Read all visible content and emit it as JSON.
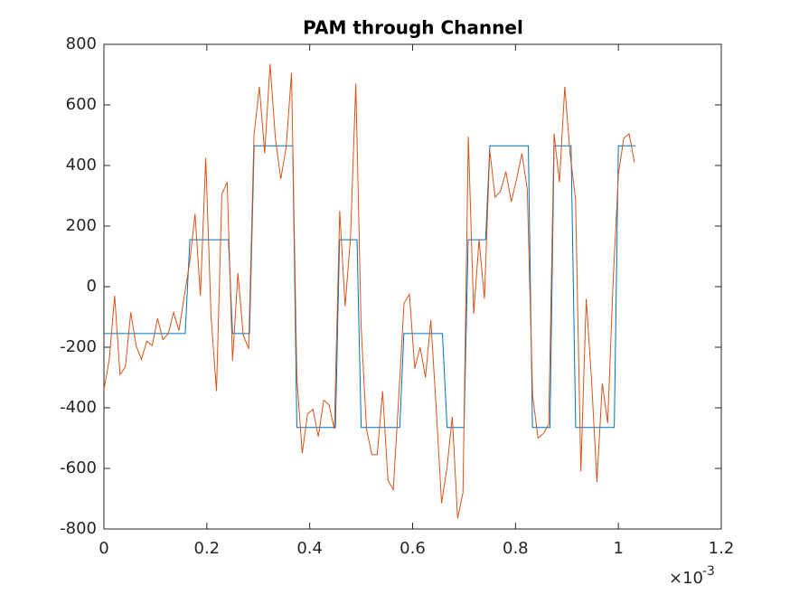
{
  "chart_data": {
    "type": "line",
    "title": "PAM through Channel",
    "x_multiplier": "×10",
    "x_multiplier_exponent": "-3",
    "xlim": [
      0,
      1.2
    ],
    "xticks": [
      0,
      0.2,
      0.4,
      0.6,
      0.8,
      1,
      1.2
    ],
    "ylim": [
      -800,
      800
    ],
    "yticks": [
      -800,
      -600,
      -400,
      -200,
      0,
      200,
      400,
      600,
      800
    ],
    "grid": false,
    "series": [
      {
        "color": "#0072BD",
        "x": [
          0,
          0.158,
          0.167,
          0.242,
          0.25,
          0.283,
          0.292,
          0.367,
          0.375,
          0.45,
          0.458,
          0.492,
          0.5,
          0.575,
          0.583,
          0.658,
          0.667,
          0.7,
          0.708,
          0.742,
          0.75,
          0.825,
          0.833,
          0.867,
          0.875,
          0.908,
          0.917,
          0.992,
          1.0,
          1.033
        ],
        "values": [
          -155,
          -155,
          155,
          155,
          -155,
          -155,
          465,
          465,
          -465,
          -465,
          155,
          155,
          -465,
          -465,
          -155,
          -155,
          -465,
          -465,
          155,
          155,
          465,
          465,
          -465,
          -465,
          465,
          465,
          -465,
          -465,
          465,
          465
        ]
      },
      {
        "color": "#D95319",
        "x": [
          0,
          0.0104,
          0.0208,
          0.0313,
          0.0417,
          0.0521,
          0.0625,
          0.0729,
          0.0833,
          0.0938,
          0.1042,
          0.1146,
          0.125,
          0.1354,
          0.1458,
          0.1563,
          0.1667,
          0.1771,
          0.1875,
          0.1979,
          0.2083,
          0.2188,
          0.2292,
          0.2396,
          0.25,
          0.2604,
          0.2708,
          0.2813,
          0.2917,
          0.3021,
          0.3125,
          0.3229,
          0.3333,
          0.3438,
          0.3542,
          0.3646,
          0.375,
          0.3854,
          0.3958,
          0.4063,
          0.4167,
          0.4271,
          0.4375,
          0.4479,
          0.4583,
          0.4688,
          0.4792,
          0.4896,
          0.5,
          0.5104,
          0.5208,
          0.5313,
          0.5417,
          0.5521,
          0.5625,
          0.5729,
          0.5833,
          0.5938,
          0.6042,
          0.6146,
          0.625,
          0.6354,
          0.6458,
          0.6563,
          0.6667,
          0.6771,
          0.6875,
          0.6979,
          0.7083,
          0.7188,
          0.7292,
          0.7396,
          0.75,
          0.7604,
          0.7708,
          0.7813,
          0.7917,
          0.8021,
          0.8125,
          0.8229,
          0.8333,
          0.8438,
          0.8542,
          0.8646,
          0.875,
          0.8854,
          0.8958,
          0.9063,
          0.9167,
          0.9271,
          0.9375,
          0.9479,
          0.9583,
          0.9688,
          0.9792,
          0.9896,
          1.0,
          1.0104,
          1.0208,
          1.0313
        ],
        "values": [
          -340,
          -240,
          -30,
          -290,
          -265,
          -85,
          -195,
          -240,
          -180,
          -195,
          -105,
          -175,
          -155,
          -85,
          -145,
          -30,
          80,
          240,
          -30,
          425,
          -100,
          -345,
          305,
          345,
          -245,
          45,
          -160,
          -205,
          500,
          660,
          440,
          735,
          490,
          355,
          460,
          705,
          -300,
          -550,
          -420,
          -405,
          -495,
          -375,
          -390,
          -470,
          250,
          -65,
          160,
          670,
          -135,
          -470,
          -555,
          -555,
          -345,
          -640,
          -670,
          -370,
          -55,
          -25,
          -270,
          -200,
          -300,
          -110,
          -400,
          -715,
          -600,
          -430,
          -765,
          -680,
          495,
          -90,
          155,
          -40,
          450,
          295,
          315,
          380,
          280,
          355,
          440,
          320,
          -360,
          -500,
          -485,
          -455,
          505,
          345,
          660,
          435,
          290,
          -610,
          -40,
          -310,
          -645,
          -320,
          -450,
          10,
          370,
          490,
          505,
          410
        ]
      }
    ]
  }
}
